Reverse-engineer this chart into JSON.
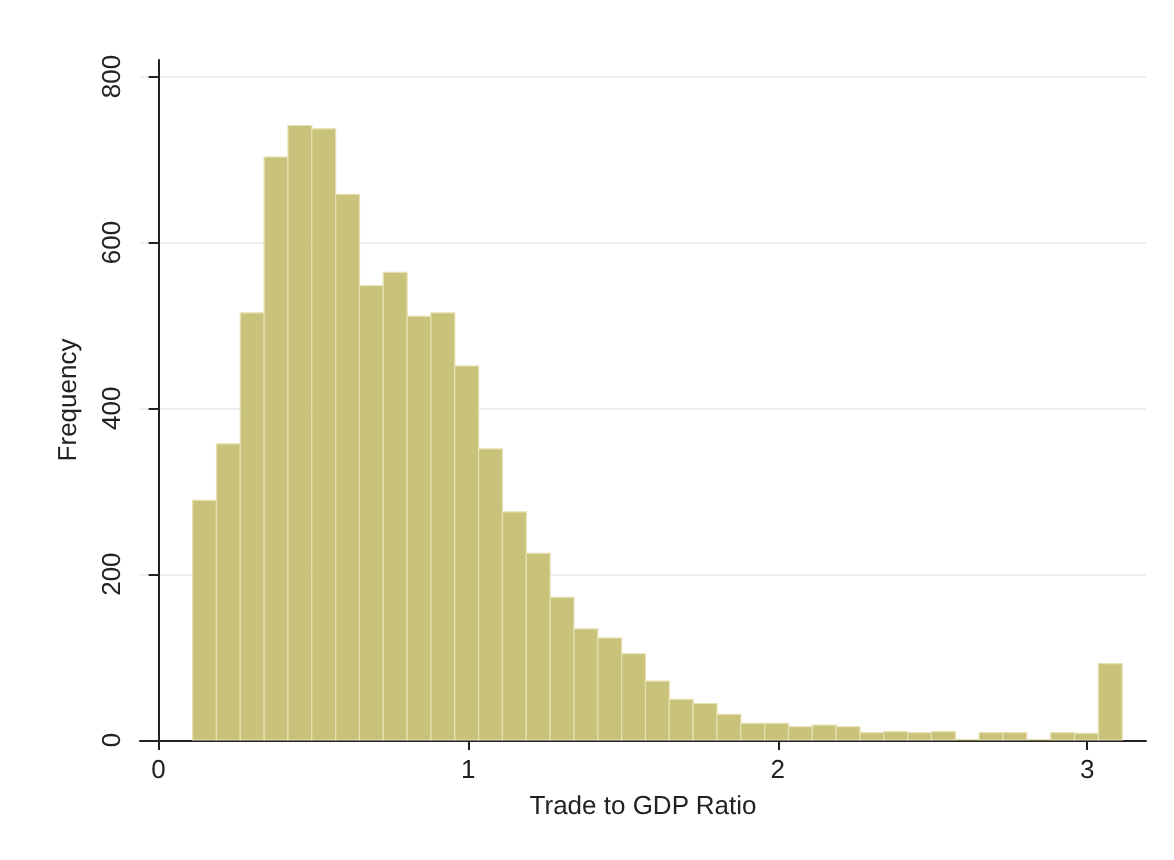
{
  "chart_data": {
    "type": "histogram",
    "xlabel": "Trade to GDP Ratio",
    "ylabel": "Frequency",
    "color": "#c9c27b",
    "bins": [
      0.11,
      0.187,
      0.264,
      0.341,
      0.418,
      0.495,
      0.572,
      0.649,
      0.726,
      0.803,
      0.88,
      0.957,
      1.034,
      1.111,
      1.188,
      1.265,
      1.342,
      1.419,
      1.496,
      1.573,
      1.65,
      1.727,
      1.804,
      1.881,
      1.958,
      2.035,
      2.112,
      2.189,
      2.266,
      2.343,
      2.42,
      2.497,
      2.574,
      2.651,
      2.728,
      2.805,
      2.882,
      2.959,
      3.036,
      3.113
    ],
    "values": [
      289,
      357,
      515,
      703,
      741,
      737,
      658,
      548,
      564,
      511,
      515,
      451,
      351,
      275,
      225,
      172,
      134,
      123,
      104,
      71,
      49,
      44,
      31,
      20,
      20,
      16,
      18,
      16,
      9,
      10,
      9,
      10,
      0,
      9,
      9,
      0,
      9,
      8,
      92
    ],
    "xlim": [
      -0.06,
      3.19
    ],
    "xticks": [
      0,
      1,
      2,
      3
    ],
    "ylim": [
      0,
      820
    ],
    "yticks": [
      0,
      200,
      400,
      600,
      800
    ],
    "grid": "y"
  }
}
